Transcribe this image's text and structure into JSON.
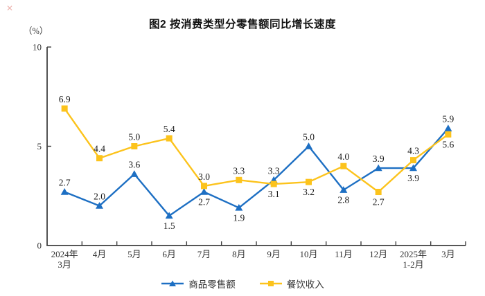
{
  "figure": {
    "artifact_mark": "✕"
  },
  "chart_data": {
    "type": "line",
    "title": "图2 按消费类型分零售额同比增长速度",
    "ylabel": "（%）",
    "xlabel": "",
    "ylim": [
      0,
      10
    ],
    "yticks": [
      0,
      5,
      10
    ],
    "grid": false,
    "legend_position": "bottom",
    "axis_color": "#3f3f3f",
    "label_color": "#1a1a1a",
    "categories": [
      "2024年\n3月",
      "4月",
      "5月",
      "6月",
      "7月",
      "8月",
      "9月",
      "10月",
      "11月",
      "12月",
      "2025年\n1-2月",
      "3月"
    ],
    "series": [
      {
        "name": "商品零售额",
        "color": "#1d6fc3",
        "marker": "triangle",
        "values": [
          2.7,
          2.0,
          3.6,
          1.5,
          2.7,
          1.9,
          3.3,
          5.0,
          2.8,
          3.9,
          3.9,
          5.9
        ],
        "label_side": [
          "above",
          "above",
          "above",
          "below",
          "below",
          "below",
          "above",
          "above",
          "below",
          "above",
          "below",
          "above"
        ]
      },
      {
        "name": "餐饮收入",
        "color": "#fcc31c",
        "marker": "square",
        "values": [
          6.9,
          4.4,
          5.0,
          5.4,
          3.0,
          3.3,
          3.1,
          3.2,
          4.0,
          2.7,
          4.3,
          5.6
        ],
        "label_side": [
          "above",
          "above",
          "above",
          "above",
          "above",
          "above",
          "below",
          "below",
          "above",
          "below",
          "above",
          "below"
        ]
      }
    ]
  }
}
